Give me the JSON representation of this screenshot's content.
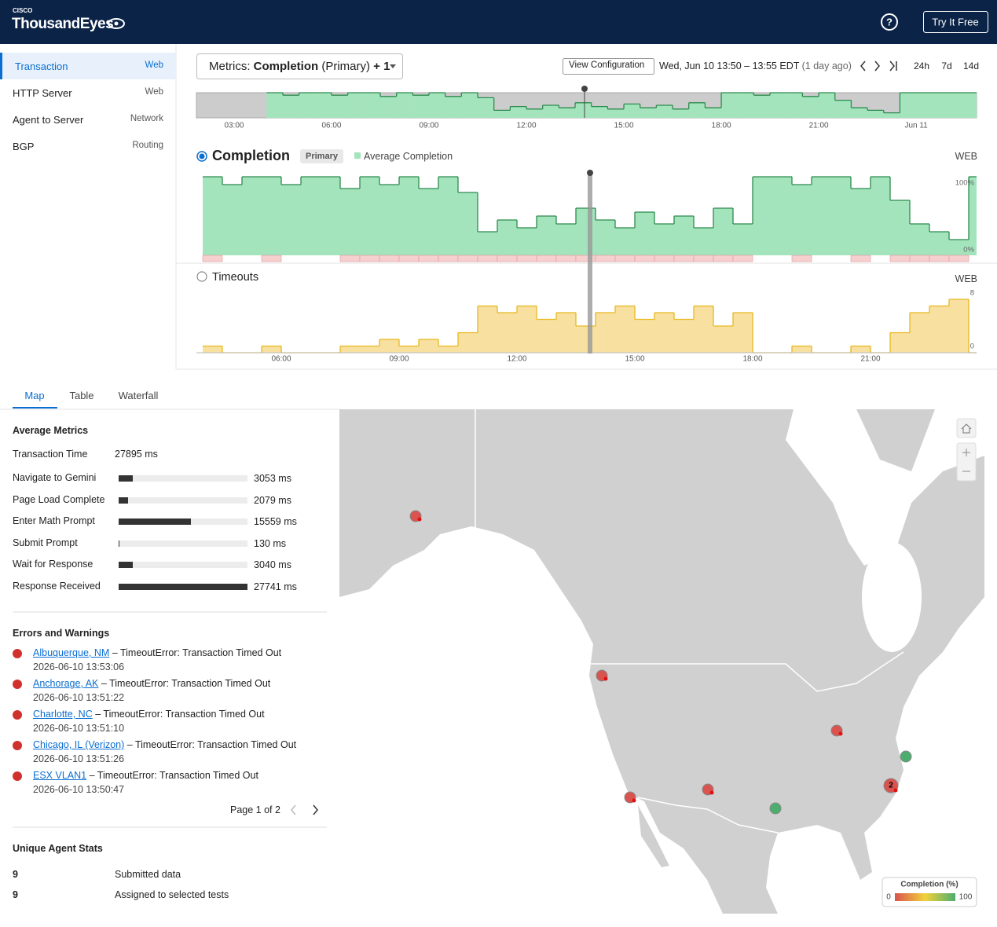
{
  "header": {
    "brand_top": "CISCO",
    "brand": "ThousandEyes",
    "help": "?",
    "cta": "Try It Free"
  },
  "sidebar": {
    "items": [
      {
        "label": "Transaction",
        "type": "Web"
      },
      {
        "label": "HTTP Server",
        "type": "Web"
      },
      {
        "label": "Agent to Server",
        "type": "Network"
      },
      {
        "label": "BGP",
        "type": "Routing"
      }
    ]
  },
  "toolbar": {
    "metric_prefix": "Metrics:",
    "metric": "Completion",
    "metric_note": "(Primary)",
    "extra": "+ 1",
    "view_config": "View Configuration",
    "date": "Wed, Jun 10 13:50 – 13:55 EDT",
    "date_relative": "(1 day ago)",
    "ranges": [
      "24h",
      "7d",
      "14d"
    ]
  },
  "overview": {
    "type": "area",
    "xlim": [
      1.84,
      25.86
    ],
    "ylim": [
      0,
      100
    ],
    "xticks": [
      {
        "value": 3,
        "label": "03:00"
      },
      {
        "value": 6,
        "label": "06:00"
      },
      {
        "value": 9,
        "label": "09:00"
      },
      {
        "value": 12,
        "label": "12:00"
      },
      {
        "value": 15,
        "label": "15:00"
      },
      {
        "value": 18,
        "label": "18:00"
      },
      {
        "value": 21,
        "label": "21:00"
      },
      {
        "value": 24,
        "label": "Jun 11"
      }
    ]
  },
  "completion": {
    "title": "Completion",
    "badge": "Primary",
    "source": "WEB",
    "chart": {
      "type": "area",
      "x": [
        4.0,
        4.5,
        5.0,
        5.5,
        6.0,
        6.5,
        7.0,
        7.5,
        8.0,
        8.5,
        9.0,
        9.5,
        10.0,
        10.5,
        11.0,
        11.5,
        12.0,
        12.5,
        13.0,
        13.5,
        14.0,
        14.5,
        15.0,
        15.5,
        16.0,
        16.5,
        17.0,
        17.5,
        18.0,
        18.5,
        19.0,
        19.5,
        20.0,
        20.5,
        21.0,
        21.5,
        22.0,
        22.5,
        23.0,
        23.5
      ],
      "series": [
        {
          "name": "Average Completion",
          "color": "#a3e4bd",
          "values": [
            100,
            90,
            100,
            100,
            90,
            100,
            100,
            85,
            100,
            90,
            100,
            85,
            100,
            80,
            30,
            45,
            35,
            50,
            40,
            60,
            45,
            35,
            55,
            40,
            50,
            35,
            60,
            40,
            100,
            100,
            90,
            100,
            100,
            85,
            100,
            70,
            40,
            30,
            20,
            100
          ]
        }
      ],
      "xlim": [
        3.84,
        23.7
      ],
      "ylim": [
        0,
        100
      ],
      "yticks": [
        {
          "value": 0,
          "label": "0%"
        },
        {
          "value": 100,
          "label": "100%"
        }
      ]
    }
  },
  "timeouts": {
    "title": "Timeouts",
    "source": "WEB",
    "chart": {
      "type": "area",
      "x": [
        4.0,
        4.5,
        5.0,
        5.5,
        6.0,
        6.5,
        7.0,
        7.5,
        8.0,
        8.5,
        9.0,
        9.5,
        10.0,
        10.5,
        11.0,
        11.5,
        12.0,
        12.5,
        13.0,
        13.5,
        14.0,
        14.5,
        15.0,
        15.5,
        16.0,
        16.5,
        17.0,
        17.5,
        18.0,
        18.5,
        19.0,
        19.5,
        20.0,
        20.5,
        21.0,
        21.5,
        22.0,
        22.5,
        23.0,
        23.5
      ],
      "values": [
        1,
        0,
        0,
        1,
        0,
        0,
        0,
        1,
        1,
        2,
        1,
        2,
        1,
        3,
        7,
        6,
        7,
        5,
        6,
        4,
        6,
        7,
        5,
        6,
        5,
        7,
        4,
        6,
        0,
        0,
        1,
        0,
        0,
        1,
        0,
        3,
        6,
        7,
        8,
        0
      ],
      "color": "#f7e0a0",
      "xlim": [
        3.84,
        23.7
      ],
      "ylim": [
        0,
        8
      ],
      "yticks": [
        0,
        8
      ],
      "xticks": [
        {
          "value": 6,
          "label": "06:00"
        },
        {
          "value": 9,
          "label": "09:00"
        },
        {
          "value": 12,
          "label": "12:00"
        },
        {
          "value": 15,
          "label": "15:00"
        },
        {
          "value": 18,
          "label": "18:00"
        },
        {
          "value": 21,
          "label": "21:00"
        }
      ]
    }
  },
  "tabs": [
    "Map",
    "Table",
    "Waterfall"
  ],
  "metrics": {
    "title": "Average Metrics",
    "total": {
      "name": "Transaction Time",
      "value": "27895 ms"
    },
    "xlim": [
      0,
      27741
    ],
    "steps": [
      {
        "name": "Navigate to Gemini",
        "value": 3053,
        "label": "3053 ms"
      },
      {
        "name": "Page Load Complete",
        "value": 2079,
        "label": "2079 ms"
      },
      {
        "name": "Enter Math Prompt",
        "value": 15559,
        "label": "15559 ms"
      },
      {
        "name": "Submit Prompt",
        "value": 130,
        "label": "130 ms"
      },
      {
        "name": "Wait for Response",
        "value": 3040,
        "label": "3040 ms"
      },
      {
        "name": "Response Received",
        "value": 27741,
        "label": "27741 ms"
      }
    ]
  },
  "errors": {
    "title": "Errors and Warnings",
    "pagination": "Page 1 of 2",
    "items": [
      {
        "agent": "Albuquerque, NM",
        "message": "– TimeoutError: Transaction Timed Out",
        "time": "2026-06-10 13:53:06"
      },
      {
        "agent": "Anchorage, AK",
        "message": "– TimeoutError: Transaction Timed Out",
        "time": "2026-06-10 13:51:22"
      },
      {
        "agent": "Charlotte, NC",
        "message": "– TimeoutError: Transaction Timed Out",
        "time": "2026-06-10 13:51:10"
      },
      {
        "agent": "Chicago, IL (Verizon)",
        "message": "– TimeoutError: Transaction Timed Out",
        "time": "2026-06-10 13:51:26"
      },
      {
        "agent": "ESX VLAN1",
        "message": "– TimeoutError: Transaction Timed Out",
        "time": "2026-06-10 13:50:47"
      }
    ]
  },
  "agents": {
    "title": "Unique Agent Stats",
    "rows": [
      {
        "count": "9",
        "label": "Submitted data"
      },
      {
        "count": "9",
        "label": "Assigned to selected tests"
      }
    ]
  },
  "map": {
    "cluster_count": "2",
    "legend": {
      "title": "Completion (%)",
      "min": "0",
      "max": "100"
    }
  }
}
